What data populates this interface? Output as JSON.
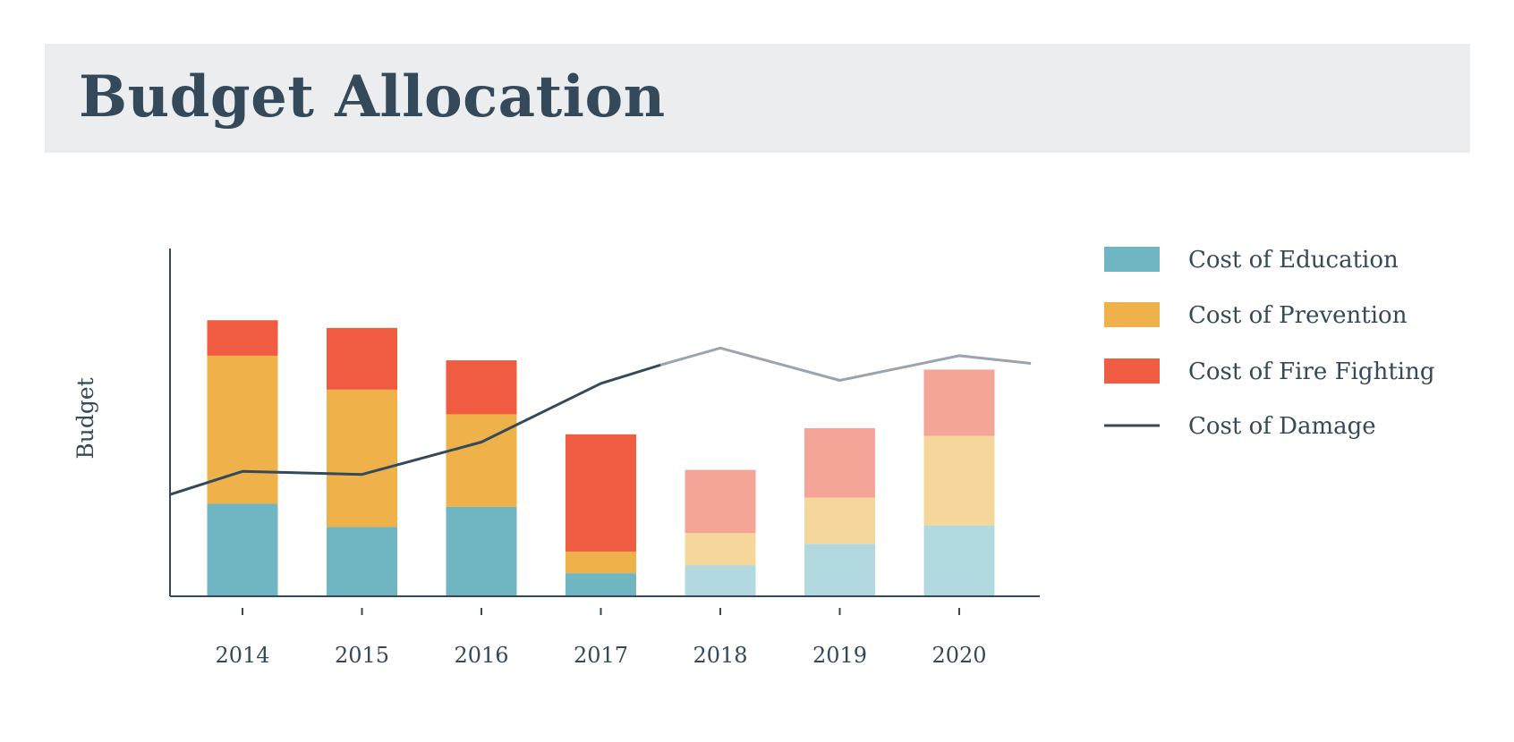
{
  "header": {
    "title": "Budget Allocation"
  },
  "colors": {
    "education": "#6fb6c2",
    "prevention": "#efb24b",
    "fire_fighting": "#ef5c42",
    "education_light": "#b1d9df",
    "prevention_light": "#f6d79b",
    "fire_fighting_light": "#f5a597",
    "damage": "#34495a",
    "damage_light": "#99a5ae",
    "axis": "#34495a"
  },
  "chart_data": {
    "type": "bar",
    "stacked": true,
    "title": "",
    "xlabel": "",
    "ylabel": "Budget",
    "categories": [
      "2014",
      "2015",
      "2016",
      "2017",
      "2018",
      "2019",
      "2020"
    ],
    "ylim": [
      0,
      100
    ],
    "projected_from": "2018",
    "series": [
      {
        "name": "Cost of Education",
        "kind": "bar",
        "values": [
          30,
          22.5,
          29,
          7.5,
          10,
          17,
          23
        ]
      },
      {
        "name": "Cost of Prevention",
        "kind": "bar",
        "values": [
          48,
          44.5,
          30,
          7,
          10.5,
          15,
          29
        ]
      },
      {
        "name": "Cost of Fire Fighting",
        "kind": "bar",
        "values": [
          11.5,
          20,
          17.5,
          38,
          20.5,
          22.5,
          21.5
        ]
      },
      {
        "name": "Cost of Damage",
        "kind": "line",
        "x": [
          1.4,
          2014,
          2015,
          2016,
          2017,
          2017.5,
          2018,
          2019,
          2020,
          2020.6
        ],
        "values": [
          33,
          40.5,
          39.5,
          50,
          69,
          75,
          80.5,
          70,
          78,
          75.5
        ]
      }
    ],
    "grid": false,
    "legend": "right"
  }
}
